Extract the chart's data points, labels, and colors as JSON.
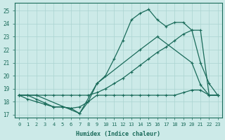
{
  "bg_color": "#cceae8",
  "grid_color": "#aad4d0",
  "line_color": "#1a6b5a",
  "xlabel": "Humidex (Indice chaleur)",
  "xlim": [
    -0.5,
    23.5
  ],
  "ylim": [
    16.8,
    25.6
  ],
  "yticks": [
    17,
    18,
    19,
    20,
    21,
    22,
    23,
    24,
    25
  ],
  "xticks": [
    0,
    1,
    2,
    3,
    4,
    5,
    6,
    7,
    8,
    9,
    10,
    11,
    12,
    13,
    14,
    15,
    16,
    17,
    18,
    19,
    20,
    21,
    22,
    23
  ],
  "line1_x": [
    0,
    1,
    2,
    3,
    4,
    5,
    6,
    7,
    8,
    9,
    10,
    11,
    12,
    13,
    14,
    15,
    16,
    17,
    18,
    19,
    20,
    21,
    22,
    23
  ],
  "line1_y": [
    18.5,
    18.2,
    18.0,
    17.8,
    17.6,
    17.6,
    17.5,
    17.1,
    18.0,
    19.4,
    20.0,
    21.3,
    22.7,
    24.3,
    24.8,
    25.1,
    24.3,
    23.8,
    24.1,
    24.1,
    23.5,
    21.0,
    19.4,
    18.5
  ],
  "line2_x": [
    0,
    1,
    2,
    3,
    4,
    5,
    6,
    7,
    8,
    9,
    10,
    11,
    12,
    13,
    14,
    15,
    16,
    17,
    18,
    19,
    20,
    21,
    22,
    23
  ],
  "line2_y": [
    18.5,
    18.5,
    18.5,
    18.5,
    18.5,
    18.5,
    18.5,
    18.5,
    18.5,
    18.7,
    19.0,
    19.4,
    19.8,
    20.3,
    20.8,
    21.3,
    21.8,
    22.2,
    22.7,
    23.2,
    23.5,
    23.5,
    18.5,
    18.5
  ],
  "line3_x": [
    0,
    1,
    2,
    3,
    4,
    5,
    6,
    7,
    8,
    9,
    10,
    11,
    12,
    13,
    14,
    15,
    16,
    17,
    18,
    19,
    20,
    21,
    22,
    23
  ],
  "line3_y": [
    18.5,
    18.5,
    18.2,
    17.9,
    17.6,
    17.6,
    17.5,
    17.6,
    18.0,
    18.5,
    18.5,
    18.5,
    18.5,
    18.5,
    18.5,
    18.5,
    18.5,
    18.5,
    18.5,
    18.7,
    18.9,
    18.9,
    18.5,
    18.5
  ],
  "line4_x": [
    0,
    2,
    7,
    9,
    14,
    16,
    20,
    21,
    22,
    23
  ],
  "line4_y": [
    18.5,
    18.5,
    17.1,
    19.4,
    22.0,
    23.0,
    21.0,
    19.3,
    18.5,
    18.5
  ]
}
